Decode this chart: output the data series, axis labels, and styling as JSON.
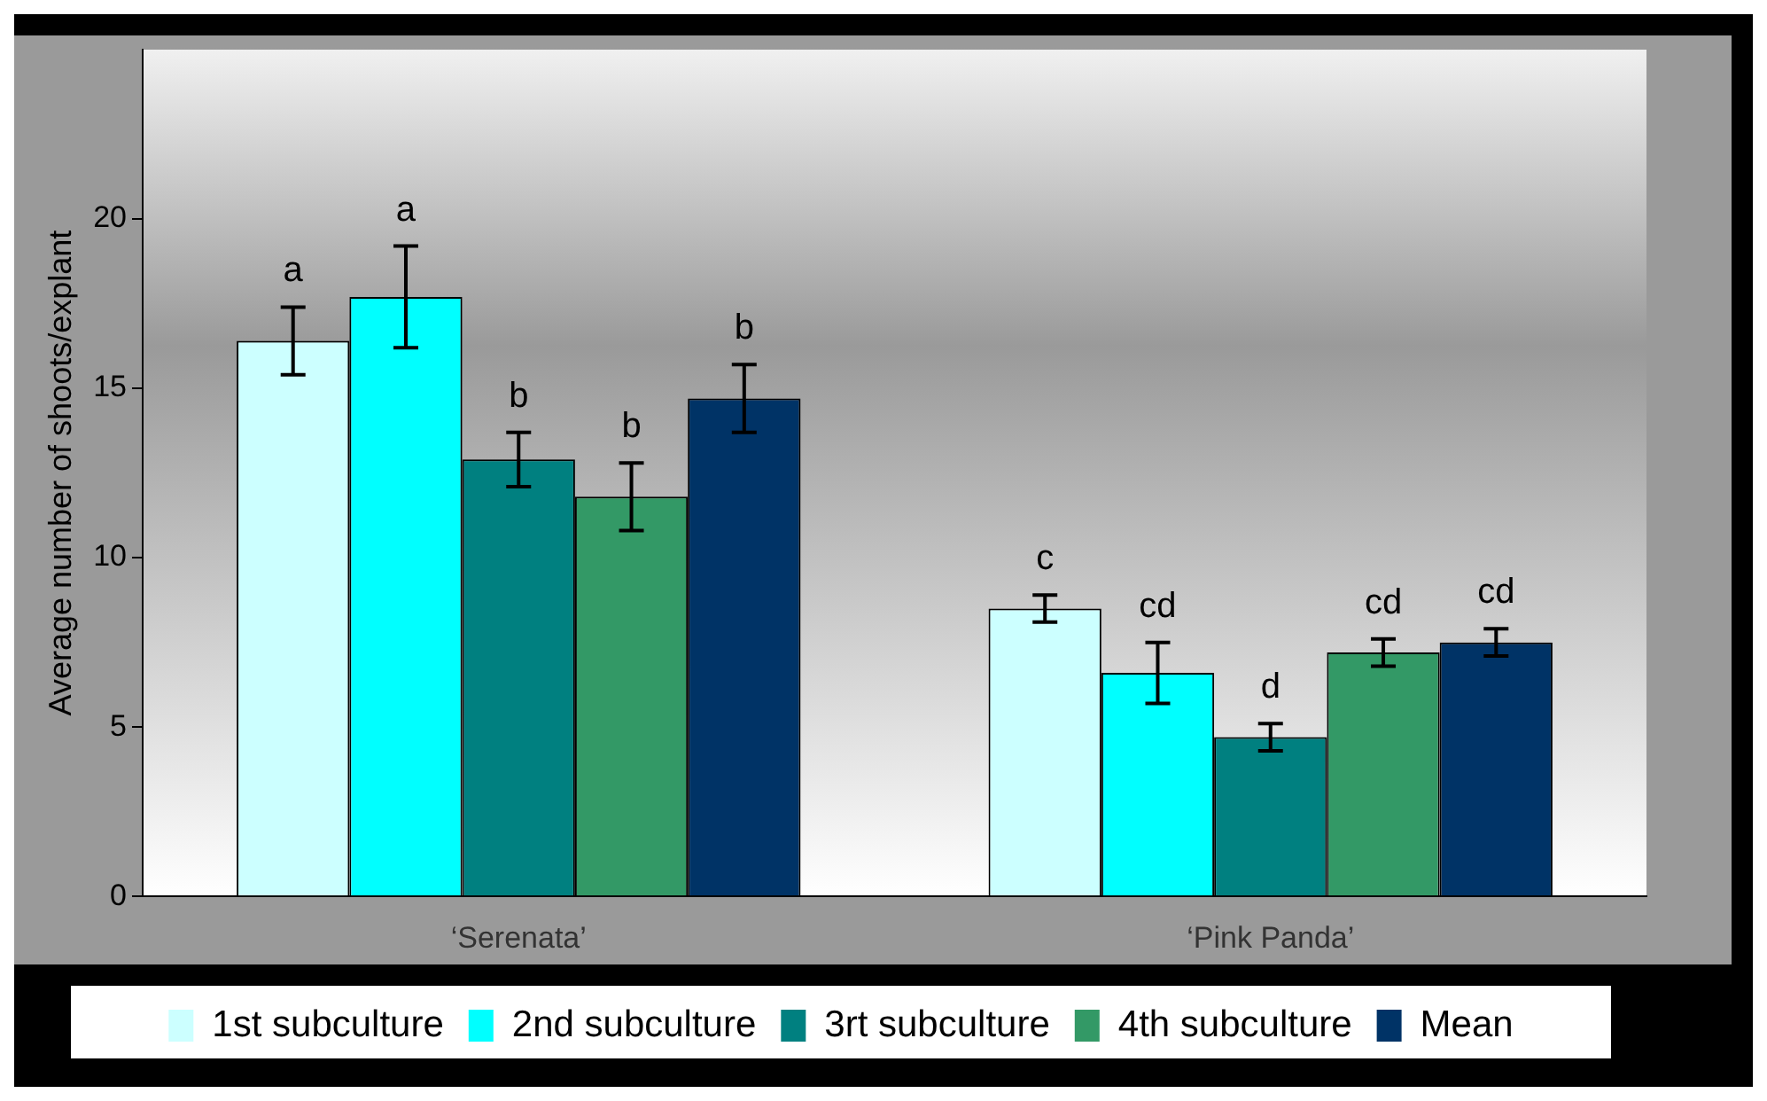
{
  "chart_data": {
    "type": "bar",
    "ylabel": "Average number of shoots/explant",
    "categories": [
      "‘Serenata’",
      "‘Pink Panda’"
    ],
    "ylim": [
      0,
      25
    ],
    "yticks": [
      0,
      5,
      10,
      15,
      20
    ],
    "grid": false,
    "legend": "bottom",
    "series": [
      {
        "name": "1st subculture",
        "color": "#ccffff",
        "values": [
          16.4,
          8.5
        ],
        "errors": [
          1.0,
          0.4
        ],
        "value_labels": [
          "a",
          "c"
        ]
      },
      {
        "name": "2nd subculture",
        "color": "#00ffff",
        "values": [
          17.7,
          6.6
        ],
        "errors": [
          1.5,
          0.9
        ],
        "value_labels": [
          "a",
          "cd"
        ]
      },
      {
        "name": "3rt subculture",
        "color": "#008080",
        "values": [
          12.9,
          4.7
        ],
        "errors": [
          0.8,
          0.4
        ],
        "value_labels": [
          "b",
          "d"
        ]
      },
      {
        "name": "4th subculture",
        "color": "#339966",
        "values": [
          11.8,
          7.2
        ],
        "errors": [
          1.0,
          0.4
        ],
        "value_labels": [
          "b",
          "cd"
        ]
      },
      {
        "name": "Mean",
        "color": "#003366",
        "values": [
          14.7,
          7.5
        ],
        "errors": [
          1.0,
          0.4
        ],
        "value_labels": [
          "b",
          "cd"
        ]
      }
    ]
  }
}
